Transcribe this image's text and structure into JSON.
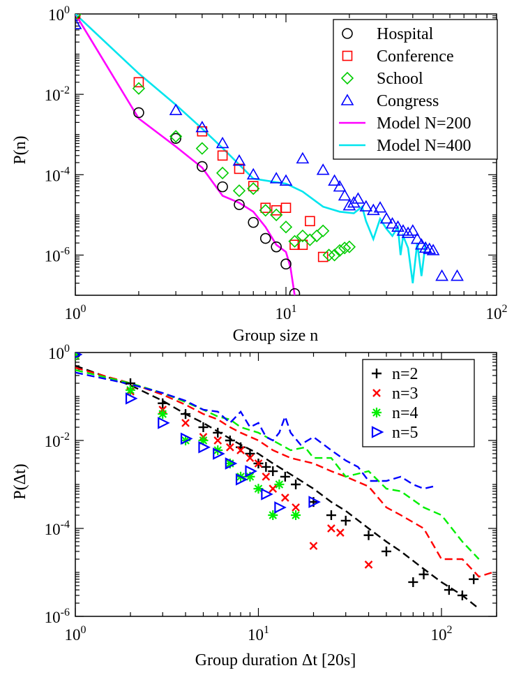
{
  "chart_data": [
    {
      "type": "scatter",
      "xlabel": "Group size n",
      "ylabel": "P(n)",
      "x_scale": "log",
      "y_scale": "log",
      "xlim": [
        1,
        100
      ],
      "ylim": [
        1e-07,
        1
      ],
      "x_ticks": [
        {
          "value": 1,
          "base": "10",
          "exp": "0"
        },
        {
          "value": 10,
          "base": "10",
          "exp": "1"
        },
        {
          "value": 100,
          "base": "10",
          "exp": "2"
        }
      ],
      "y_ticks": [
        {
          "value": 1,
          "base": "10",
          "exp": "0"
        },
        {
          "value": 0.01,
          "base": "10",
          "exp": "-2"
        },
        {
          "value": 0.0001,
          "base": "10",
          "exp": "-4"
        },
        {
          "value": 1e-06,
          "base": "10",
          "exp": "-6"
        }
      ],
      "legend_position": "top-right",
      "series": [
        {
          "name": "Hospital",
          "kind": "points",
          "marker": "circle",
          "color": "#000000",
          "x": [
            1,
            2,
            3,
            4,
            5,
            6,
            7,
            8,
            9,
            10,
            11
          ],
          "y": [
            1.0,
            0.0035,
            0.0008,
            0.00016,
            5e-05,
            1.8e-05,
            6.5e-06,
            2.6e-06,
            1.6e-06,
            6e-07,
            1.1e-07
          ]
        },
        {
          "name": "Conference",
          "kind": "points",
          "marker": "square",
          "color": "#ff0000",
          "x": [
            1,
            2,
            4,
            5,
            6,
            7,
            8,
            9,
            10,
            11,
            12,
            13,
            15
          ],
          "y": [
            1.0,
            0.02,
            0.0012,
            0.0003,
            0.00014,
            5.2e-05,
            1.5e-05,
            1.3e-05,
            1.5e-05,
            1.8e-06,
            1.8e-06,
            7e-06,
            9e-07
          ]
        },
        {
          "name": "School",
          "kind": "points",
          "marker": "diamond",
          "color": "#00cc00",
          "x": [
            1,
            2,
            3,
            4,
            5,
            6,
            7,
            8,
            9,
            10,
            11,
            12,
            13,
            14,
            15,
            16,
            17,
            18,
            19,
            20
          ],
          "y": [
            1.0,
            0.014,
            0.0009,
            0.00045,
            0.00011,
            4e-05,
            4.5e-05,
            1.3e-05,
            1e-05,
            5e-06,
            2.2e-06,
            3e-06,
            2.4e-06,
            3e-06,
            4e-06,
            1e-06,
            1e-06,
            1.3e-06,
            1.5e-06,
            1.6e-06
          ]
        },
        {
          "name": "Congress",
          "kind": "points",
          "marker": "triangle",
          "color": "#0000ff",
          "x": [
            1,
            3,
            4,
            5,
            6,
            7,
            9,
            10,
            12,
            15,
            17,
            18,
            19,
            20,
            21,
            22,
            24,
            26,
            28,
            30,
            32,
            34,
            36,
            38,
            40,
            42,
            44,
            46,
            48,
            50,
            55,
            65
          ],
          "y": [
            0.55,
            0.004,
            0.0015,
            0.0006,
            0.00022,
            0.0001,
            8e-05,
            7e-05,
            0.00025,
            0.00013,
            7e-05,
            5e-05,
            3e-05,
            1.7e-05,
            2e-05,
            2.5e-05,
            1.6e-05,
            1.3e-05,
            1.5e-05,
            8e-06,
            6e-06,
            5e-06,
            4e-06,
            3.5e-06,
            4e-06,
            2.5e-06,
            1.8e-06,
            1.5e-06,
            1.4e-06,
            1.3e-06,
            3e-07,
            3e-07
          ]
        },
        {
          "name": "Model N=200",
          "kind": "line",
          "color": "#ff00ff",
          "x": [
            1,
            2,
            3,
            4,
            5,
            6,
            7,
            8,
            9,
            10,
            10.5,
            11
          ],
          "y": [
            1.0,
            0.0025,
            0.0005,
            0.00015,
            3e-05,
            2e-05,
            1.2e-05,
            5e-06,
            1.8e-06,
            1.2e-06,
            5e-07,
            1e-07
          ]
        },
        {
          "name": "Model N=400",
          "kind": "line",
          "color": "#00e5ee",
          "x": [
            1,
            2,
            3,
            4,
            5,
            7,
            10,
            12,
            15,
            18,
            21,
            23,
            24,
            26,
            28,
            30,
            32,
            34,
            35,
            36,
            38,
            40,
            42,
            44,
            46
          ],
          "y": [
            1.0,
            0.033,
            0.0055,
            0.0014,
            0.00046,
            8e-05,
            6e-05,
            3.8e-05,
            1.6e-05,
            1.2e-05,
            1.1e-05,
            1.6e-05,
            7e-06,
            2.5e-06,
            8e-06,
            4.5e-06,
            3e-06,
            5e-06,
            1e-06,
            3e-06,
            1.5e-06,
            2e-07,
            2e-06,
            3e-07,
            2e-06
          ]
        }
      ]
    },
    {
      "type": "scatter",
      "xlabel": "Group duration Δt [20s]",
      "ylabel": "P(Δt)",
      "x_scale": "log",
      "y_scale": "log",
      "xlim": [
        1,
        200
      ],
      "ylim": [
        1e-06,
        1
      ],
      "x_ticks": [
        {
          "value": 1,
          "base": "10",
          "exp": "0"
        },
        {
          "value": 10,
          "base": "10",
          "exp": "1"
        },
        {
          "value": 100,
          "base": "10",
          "exp": "2"
        }
      ],
      "y_ticks": [
        {
          "value": 1,
          "base": "10",
          "exp": "0"
        },
        {
          "value": 0.01,
          "base": "10",
          "exp": "-2"
        },
        {
          "value": 0.0001,
          "base": "10",
          "exp": "-4"
        },
        {
          "value": 1e-06,
          "base": "10",
          "exp": "-6"
        }
      ],
      "legend_position": "top-right",
      "series": [
        {
          "name": "n=2",
          "kind": "points",
          "marker": "plus",
          "color": "#000000",
          "x": [
            1,
            2,
            3,
            4,
            5,
            6,
            7,
            8,
            9,
            10,
            11,
            12,
            14,
            16,
            20,
            25,
            30,
            40,
            50,
            70,
            80,
            110,
            130,
            150
          ],
          "y": [
            0.9,
            0.2,
            0.07,
            0.04,
            0.02,
            0.015,
            0.01,
            0.007,
            0.005,
            0.003,
            0.0025,
            0.002,
            0.0015,
            0.001,
            0.0004,
            0.0002,
            0.00015,
            7e-05,
            3e-05,
            6e-06,
            9e-06,
            4e-06,
            3e-06,
            7e-06
          ]
        },
        {
          "name": "n=3",
          "kind": "points",
          "marker": "x",
          "color": "#ff0000",
          "x": [
            1,
            2,
            3,
            4,
            5,
            6,
            7,
            8,
            9,
            10,
            11,
            12,
            14,
            16,
            20,
            25,
            28,
            40
          ],
          "y": [
            0.85,
            0.13,
            0.05,
            0.025,
            0.012,
            0.01,
            0.007,
            0.006,
            0.004,
            0.003,
            0.0015,
            0.0008,
            0.0005,
            0.0003,
            4e-05,
            0.0001,
            8e-05,
            1.5e-05
          ]
        },
        {
          "name": "n=4",
          "kind": "points",
          "marker": "asterisk",
          "color": "#00ee00",
          "x": [
            1,
            2,
            3,
            4,
            5,
            6,
            7,
            8,
            9,
            10,
            12,
            13,
            16
          ],
          "y": [
            0.85,
            0.14,
            0.04,
            0.01,
            0.01,
            0.006,
            0.003,
            0.0015,
            0.0015,
            0.0008,
            0.0002,
            0.001,
            0.0002
          ]
        },
        {
          "name": "n=5",
          "kind": "points",
          "marker": "triangle-right",
          "color": "#0000ff",
          "x": [
            1,
            2,
            3,
            4,
            5,
            6,
            7,
            8,
            9,
            11,
            13,
            20
          ],
          "y": [
            0.9,
            0.09,
            0.025,
            0.011,
            0.007,
            0.005,
            0.003,
            0.0013,
            0.002,
            0.0006,
            0.0003,
            0.0004
          ]
        },
        {
          "name": "",
          "kind": "dashed",
          "color": "#000000",
          "x": [
            1,
            2,
            3,
            4,
            5,
            6,
            7,
            8,
            10,
            12,
            15,
            20,
            25,
            30,
            40,
            50,
            60,
            80,
            100,
            130,
            160
          ],
          "y": [
            0.5,
            0.18,
            0.08,
            0.04,
            0.025,
            0.016,
            0.011,
            0.008,
            0.005,
            0.003,
            0.0017,
            0.0008,
            0.0004,
            0.00025,
            0.0001,
            5e-05,
            3e-05,
            1.2e-05,
            6e-06,
            3e-06,
            1.5e-06
          ]
        },
        {
          "name": "",
          "kind": "dashed",
          "color": "#ff0000",
          "x": [
            1,
            2,
            3,
            4,
            5,
            6,
            7,
            8,
            10,
            12,
            15,
            20,
            25,
            30,
            40,
            50,
            60,
            80,
            100,
            130,
            160,
            190
          ],
          "y": [
            0.45,
            0.2,
            0.11,
            0.065,
            0.04,
            0.03,
            0.02,
            0.015,
            0.01,
            0.006,
            0.004,
            0.003,
            0.002,
            0.0015,
            0.0009,
            0.0003,
            0.0002,
            0.0001,
            2e-05,
            2e-05,
            8e-06,
            1e-05
          ]
        },
        {
          "name": "",
          "kind": "dashed",
          "color": "#00ee00",
          "x": [
            1,
            2,
            3,
            4,
            5,
            6,
            7,
            8,
            10,
            12,
            15,
            18,
            20,
            25,
            30,
            40,
            50,
            60,
            80,
            100,
            130,
            160
          ],
          "y": [
            0.4,
            0.2,
            0.12,
            0.075,
            0.05,
            0.035,
            0.03,
            0.02,
            0.015,
            0.01,
            0.006,
            0.007,
            0.004,
            0.004,
            0.0015,
            0.002,
            0.0008,
            0.0007,
            0.0003,
            0.0002,
            5e-05,
            2e-05
          ]
        },
        {
          "name": "",
          "kind": "dashed",
          "color": "#0000ff",
          "x": [
            1,
            2,
            3,
            4,
            5,
            6,
            7,
            8,
            9,
            10,
            11,
            12,
            13,
            14,
            15,
            17,
            20,
            25,
            30,
            35,
            40,
            50,
            60,
            70,
            80,
            90
          ],
          "y": [
            0.35,
            0.19,
            0.12,
            0.08,
            0.05,
            0.045,
            0.025,
            0.045,
            0.02,
            0.025,
            0.012,
            0.01,
            0.015,
            0.035,
            0.015,
            0.008,
            0.012,
            0.006,
            0.0035,
            0.0025,
            0.0012,
            0.0012,
            0.0015,
            0.001,
            0.0008,
            0.0009
          ]
        }
      ]
    }
  ]
}
